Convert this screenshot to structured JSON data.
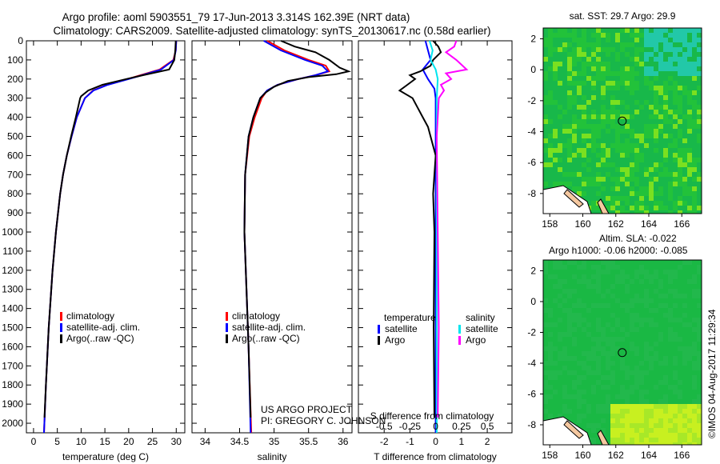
{
  "titles": {
    "line1": "Argo profile: aoml 5903551_79 17-Jun-2013 3.314S 162.39E (NRT data)",
    "line2": "Climatology: CARS2009. Satellite-adjusted climatology: synTS_20130617.nc (0.58d earlier)"
  },
  "credit": "US ARGO PROJECT",
  "pi": "PI: GREGORY C. JOHNSON",
  "stamp": "©IMOS 04-Aug-2017 11:29:34",
  "colors": {
    "climatology": "#ff0000",
    "satellite": "#0000ff",
    "argo": "#000000",
    "sal_satellite": "#00e5ee",
    "sal_argo": "#ff00ff"
  },
  "chart_data": [
    {
      "type": "line",
      "xlabel": "temperature (deg C)",
      "ylabel": "",
      "xlim": [
        -1.5,
        31.8
      ],
      "ylim": [
        2050,
        0
      ],
      "xticks": [
        "0",
        "5",
        "10",
        "15",
        "20",
        "25",
        "30"
      ],
      "yticks": [
        "0",
        "100",
        "200",
        "300",
        "400",
        "500",
        "600",
        "700",
        "800",
        "900",
        "1000",
        "1100",
        "1200",
        "1300",
        "1400",
        "1500",
        "1600",
        "1700",
        "1800",
        "1900",
        "2000"
      ],
      "legend": [
        "climatology",
        "satellite-adj. clim.",
        "Argo(..raw -QC)"
      ],
      "series": [
        {
          "name": "climatology",
          "pressure": [
            0,
            50,
            100,
            150,
            180,
            200,
            230,
            260,
            300,
            400,
            500,
            600,
            700,
            800,
            1000,
            1200,
            1500,
            1800,
            2050
          ],
          "values": [
            30.0,
            29.9,
            29.4,
            26.5,
            22.5,
            19.8,
            15.5,
            12.5,
            10.8,
            9.1,
            8.0,
            7.0,
            6.2,
            5.6,
            4.7,
            4.0,
            3.2,
            2.6,
            2.2
          ]
        },
        {
          "name": "satellite-adj. clim.",
          "pressure": [
            0,
            50,
            100,
            150,
            180,
            200,
            230,
            260,
            300,
            400,
            500,
            600,
            700,
            800,
            1000,
            1200,
            1500,
            1800,
            2050
          ],
          "values": [
            30.0,
            29.9,
            29.5,
            26.8,
            22.8,
            20.0,
            15.6,
            12.6,
            10.8,
            9.1,
            8.0,
            7.0,
            6.2,
            5.6,
            4.7,
            4.0,
            3.2,
            2.6,
            2.2
          ]
        },
        {
          "name": "Argo(..raw -QC)",
          "pressure": [
            0,
            50,
            100,
            150,
            180,
            200,
            230,
            260,
            290,
            300,
            400,
            500,
            600,
            700,
            800,
            1000,
            1200,
            1500,
            1800,
            1970
          ],
          "values": [
            29.9,
            29.8,
            29.6,
            28.5,
            23.0,
            19.5,
            14.5,
            11.5,
            10.0,
            9.8,
            8.9,
            7.9,
            7.0,
            6.2,
            5.6,
            4.7,
            4.0,
            3.2,
            2.6,
            2.3
          ]
        }
      ]
    },
    {
      "type": "line",
      "xlabel": "salinity",
      "xlim": [
        33.81,
        36.13
      ],
      "ylim": [
        2050,
        0
      ],
      "xticks": [
        "34",
        "34.5",
        "35",
        "35.5",
        "36"
      ],
      "legend": [
        "climatology",
        "satellite-adj. clim.",
        "Argo(..raw -QC)"
      ],
      "series": [
        {
          "name": "climatology",
          "pressure": [
            0,
            50,
            100,
            130,
            160,
            180,
            200,
            230,
            260,
            300,
            400,
            500,
            700,
            1000,
            1300,
            1600,
            2050
          ],
          "values": [
            34.9,
            35.15,
            35.5,
            35.75,
            35.8,
            35.6,
            35.35,
            35.05,
            34.9,
            34.82,
            34.72,
            34.64,
            34.58,
            34.57,
            34.6,
            34.63,
            34.67
          ]
        },
        {
          "name": "satellite-adj. clim.",
          "pressure": [
            0,
            50,
            100,
            130,
            160,
            180,
            200,
            230,
            260,
            300,
            400,
            500,
            700,
            1000,
            1300,
            1600,
            2050
          ],
          "values": [
            34.85,
            35.1,
            35.45,
            35.7,
            35.78,
            35.6,
            35.35,
            35.05,
            34.9,
            34.8,
            34.7,
            34.63,
            34.58,
            34.57,
            34.6,
            34.63,
            34.66
          ]
        },
        {
          "name": "Argo(..raw -QC)",
          "pressure": [
            0,
            30,
            60,
            100,
            140,
            160,
            175,
            190,
            210,
            240,
            270,
            300,
            400,
            500,
            700,
            1000,
            1300,
            1600,
            1970
          ],
          "values": [
            35.1,
            35.3,
            35.6,
            35.8,
            35.95,
            36.08,
            35.9,
            35.5,
            35.2,
            35.0,
            34.88,
            34.8,
            34.7,
            34.63,
            34.58,
            34.57,
            34.6,
            34.63,
            34.66
          ]
        }
      ]
    },
    {
      "type": "line",
      "xlabel": "T difference from climatology",
      "xlabel2": "S difference from climatology",
      "xlim": [
        -3.0,
        2.96
      ],
      "ylim": [
        2050,
        0
      ],
      "xticks": [
        "-2",
        "-1",
        "0",
        "1",
        "2"
      ],
      "xticks2": [
        "-0.5",
        "-0.25",
        "0",
        "0.25",
        "0.5"
      ],
      "legend_temperature": {
        "title": "temperature",
        "items": [
          "satellite",
          "Argo"
        ]
      },
      "legend_salinity": {
        "title": "salinity",
        "items": [
          "satellite",
          "Argo"
        ]
      },
      "series": [
        {
          "name": "temperature satellite",
          "pressure": [
            0,
            50,
            100,
            150,
            200,
            250,
            300,
            400,
            600,
            1000,
            1500,
            2050
          ],
          "values": [
            -0.4,
            -0.3,
            -0.2,
            -0.5,
            -0.3,
            -0.05,
            0,
            0,
            0,
            0,
            0,
            0
          ]
        },
        {
          "name": "temperature Argo",
          "pressure": [
            0,
            30,
            60,
            100,
            130,
            160,
            180,
            200,
            230,
            260,
            300,
            350,
            400,
            450,
            500,
            550,
            600,
            800,
            1000,
            1500,
            1970
          ],
          "values": [
            -0.1,
            0.1,
            0.2,
            -0.1,
            -0.2,
            -0.6,
            -1.0,
            -0.8,
            -1.1,
            -1.4,
            -0.9,
            -0.7,
            -0.5,
            -0.3,
            -0.2,
            -0.1,
            0,
            -0.1,
            -0.05,
            -0.08,
            -0.05
          ]
        },
        {
          "name": "salinity satellite",
          "pressure": [
            0,
            50,
            100,
            150,
            200,
            300,
            500,
            1000,
            1500,
            2050
          ],
          "values": [
            -0.06,
            -0.03,
            -0.05,
            0.0,
            0.02,
            0.01,
            0.01,
            0.01,
            0.01,
            0.01
          ]
        },
        {
          "name": "salinity Argo",
          "pressure": [
            0,
            30,
            60,
            100,
            150,
            170,
            200,
            230,
            260,
            300,
            400,
            500,
            1000,
            1500,
            1970
          ],
          "values": [
            0.2,
            0.18,
            0.1,
            0.2,
            0.3,
            0.1,
            0.15,
            0.05,
            0.08,
            0.03,
            0.02,
            0.01,
            0.02,
            0.03,
            0.02
          ]
        }
      ]
    },
    {
      "type": "heatmap",
      "title": "sat. SST: 29.7 Argo: 29.9",
      "xlim": [
        157.6,
        167.2
      ],
      "ylim": [
        -9.3,
        2.7
      ],
      "xticks": [
        "158",
        "160",
        "162",
        "164",
        "166"
      ],
      "yticks": [
        "2",
        "0",
        "-2",
        "-4",
        "-6",
        "-8"
      ],
      "argo_position": {
        "lon": 162.39,
        "lat": -3.314
      }
    },
    {
      "type": "heatmap",
      "title": "Altim. SLA: -0.022",
      "subtitle": "Argo h1000: -0.06 h2000: -0.085",
      "xlim": [
        157.6,
        167.2
      ],
      "ylim": [
        -9.3,
        2.7
      ],
      "xticks": [
        "158",
        "160",
        "162",
        "164",
        "166"
      ],
      "yticks": [
        "2",
        "0",
        "-2",
        "-4",
        "-6",
        "-8"
      ],
      "argo_position": {
        "lon": 162.39,
        "lat": -3.314
      }
    }
  ]
}
